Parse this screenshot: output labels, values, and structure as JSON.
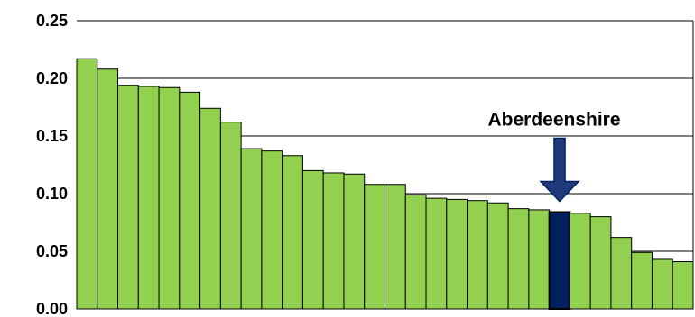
{
  "chart_data": {
    "type": "bar",
    "title": "",
    "xlabel": "",
    "ylabel": "",
    "ylim": [
      0,
      0.25
    ],
    "yticks": [
      "0.00",
      "0.05",
      "0.10",
      "0.15",
      "0.20",
      "0.25"
    ],
    "grid": true,
    "legend": "none",
    "values": [
      0.217,
      0.208,
      0.194,
      0.193,
      0.192,
      0.188,
      0.174,
      0.162,
      0.139,
      0.137,
      0.133,
      0.12,
      0.118,
      0.117,
      0.108,
      0.108,
      0.099,
      0.096,
      0.095,
      0.094,
      0.092,
      0.087,
      0.086,
      0.084,
      0.083,
      0.08,
      0.062,
      0.049,
      0.043,
      0.041
    ],
    "highlight_index": 23,
    "annotation": {
      "label": "Aberdeenshire",
      "target_index": 23
    },
    "colors": {
      "bar": "#92d050",
      "highlight": "#002060",
      "arrow": "#1f3a7a",
      "grid": "#000000",
      "outline": "#000000"
    }
  }
}
